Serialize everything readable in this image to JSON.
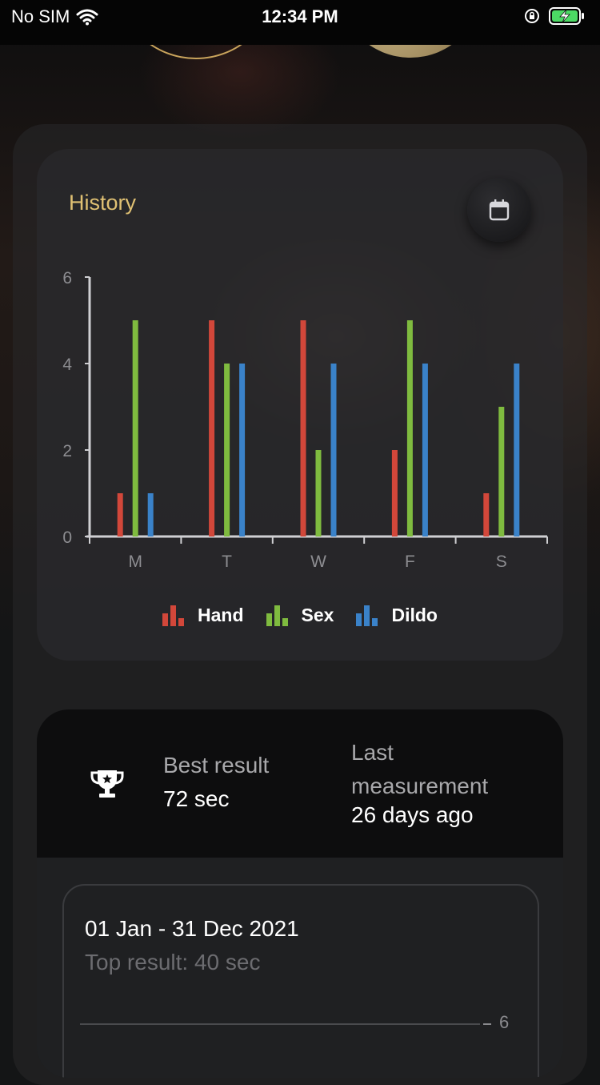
{
  "status_bar": {
    "carrier": "No SIM",
    "time": "12:34 PM"
  },
  "history": {
    "title": "History"
  },
  "chart_data": {
    "type": "bar",
    "categories": [
      "M",
      "T",
      "W",
      "F",
      "S"
    ],
    "series": [
      {
        "name": "Hand",
        "color": "#d2473a",
        "values": [
          1,
          5,
          5,
          2,
          1
        ]
      },
      {
        "name": "Sex",
        "color": "#7fbb3f",
        "values": [
          5,
          4,
          2,
          5,
          3
        ]
      },
      {
        "name": "Dildo",
        "color": "#3a82c9",
        "values": [
          1,
          4,
          4,
          4,
          4
        ]
      }
    ],
    "ylim": [
      0,
      6
    ],
    "yticks": [
      0,
      2,
      4,
      6
    ],
    "legend_position": "bottom",
    "grid": false
  },
  "stats": {
    "best_label": "Best result",
    "best_value": "72 sec",
    "last_label": "Last measurement",
    "last_value": "26 days ago"
  },
  "range": {
    "title": "01 Jan - 31 Dec 2021",
    "subtitle": "Top result: 40 sec",
    "axis_value": "6"
  }
}
